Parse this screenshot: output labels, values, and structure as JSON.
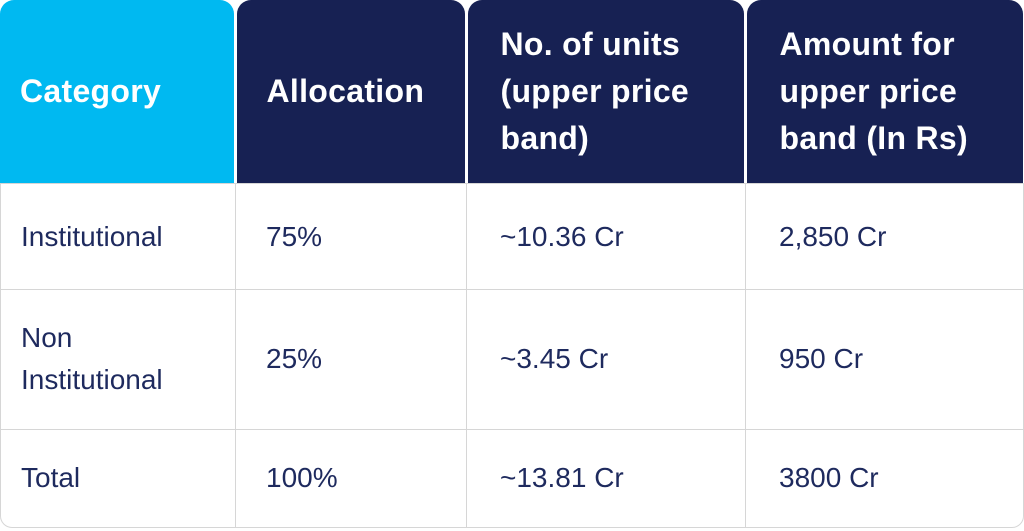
{
  "table": {
    "header": [
      "Category",
      "Allocation",
      "No. of units (upper price band)",
      "Amount for upper price band (In Rs)"
    ],
    "rows": [
      [
        "Institutional",
        "75%",
        "~10.36 Cr",
        "2,850 Cr"
      ],
      [
        "Non Institutional",
        "25%",
        "~3.45 Cr",
        "950 Cr"
      ],
      [
        "Total",
        "100%",
        "~13.81 Cr",
        "3800 Cr"
      ]
    ]
  }
}
